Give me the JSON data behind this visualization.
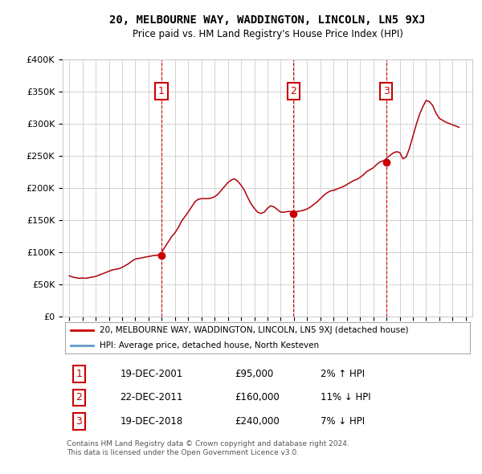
{
  "title": "20, MELBOURNE WAY, WADDINGTON, LINCOLN, LN5 9XJ",
  "subtitle": "Price paid vs. HM Land Registry's House Price Index (HPI)",
  "line1_label": "20, MELBOURNE WAY, WADDINGTON, LINCOLN, LN5 9XJ (detached house)",
  "line2_label": "HPI: Average price, detached house, North Kesteven",
  "sale_points": [
    {
      "num": 1,
      "year": 2001.97,
      "price": 95000,
      "label": "1",
      "date": "19-DEC-2001",
      "pct": "2%",
      "dir": "↑"
    },
    {
      "num": 2,
      "year": 2011.97,
      "price": 160000,
      "label": "2",
      "date": "22-DEC-2011",
      "pct": "11%",
      "dir": "↓"
    },
    {
      "num": 3,
      "year": 2018.97,
      "price": 240000,
      "label": "3",
      "date": "19-DEC-2018",
      "pct": "7%",
      "dir": "↓"
    }
  ],
  "vline_years": [
    2001.97,
    2011.97,
    2018.97
  ],
  "ylim": [
    0,
    400000
  ],
  "xlim": [
    1994.5,
    2025.5
  ],
  "yticks": [
    0,
    50000,
    100000,
    150000,
    200000,
    250000,
    300000,
    350000,
    400000
  ],
  "ytick_labels": [
    "£0",
    "£50K",
    "£100K",
    "£150K",
    "£200K",
    "£250K",
    "£300K",
    "£350K",
    "£400K"
  ],
  "xticks": [
    1995,
    1996,
    1997,
    1998,
    1999,
    2000,
    2001,
    2002,
    2003,
    2004,
    2005,
    2006,
    2007,
    2008,
    2009,
    2010,
    2011,
    2012,
    2013,
    2014,
    2015,
    2016,
    2017,
    2018,
    2019,
    2020,
    2021,
    2022,
    2023,
    2024,
    2025
  ],
  "red_color": "#cc0000",
  "blue_color": "#6699cc",
  "vline_color": "#cc0000",
  "grid_color": "#cccccc",
  "bg_color": "#ffffff",
  "footnote": "Contains HM Land Registry data © Crown copyright and database right 2024.\nThis data is licensed under the Open Government Licence v3.0.",
  "table_rows": [
    {
      "num": "1",
      "date": "19-DEC-2001",
      "price": "£95,000",
      "pct": "2%",
      "dir": "↑"
    },
    {
      "num": "2",
      "date": "22-DEC-2011",
      "price": "£160,000",
      "pct": "11%",
      "dir": "↓"
    },
    {
      "num": "3",
      "date": "19-DEC-2018",
      "price": "£240,000",
      "pct": "7%",
      "dir": "↓"
    }
  ],
  "hpi_years": [
    1995.0,
    1995.25,
    1995.5,
    1995.75,
    1996.0,
    1996.25,
    1996.5,
    1996.75,
    1997.0,
    1997.25,
    1997.5,
    1997.75,
    1998.0,
    1998.25,
    1998.5,
    1998.75,
    1999.0,
    1999.25,
    1999.5,
    1999.75,
    2000.0,
    2000.25,
    2000.5,
    2000.75,
    2001.0,
    2001.25,
    2001.5,
    2001.75,
    2002.0,
    2002.25,
    2002.5,
    2002.75,
    2003.0,
    2003.25,
    2003.5,
    2003.75,
    2004.0,
    2004.25,
    2004.5,
    2004.75,
    2005.0,
    2005.25,
    2005.5,
    2005.75,
    2006.0,
    2006.25,
    2006.5,
    2006.75,
    2007.0,
    2007.25,
    2007.5,
    2007.75,
    2008.0,
    2008.25,
    2008.5,
    2008.75,
    2009.0,
    2009.25,
    2009.5,
    2009.75,
    2010.0,
    2010.25,
    2010.5,
    2010.75,
    2011.0,
    2011.25,
    2011.5,
    2011.75,
    2012.0,
    2012.25,
    2012.5,
    2012.75,
    2013.0,
    2013.25,
    2013.5,
    2013.75,
    2014.0,
    2014.25,
    2014.5,
    2014.75,
    2015.0,
    2015.25,
    2015.5,
    2015.75,
    2016.0,
    2016.25,
    2016.5,
    2016.75,
    2017.0,
    2017.25,
    2017.5,
    2017.75,
    2018.0,
    2018.25,
    2018.5,
    2018.75,
    2019.0,
    2019.25,
    2019.5,
    2019.75,
    2020.0,
    2020.25,
    2020.5,
    2020.75,
    2021.0,
    2021.25,
    2021.5,
    2021.75,
    2022.0,
    2022.25,
    2022.5,
    2022.75,
    2023.0,
    2023.25,
    2023.5,
    2023.75,
    2024.0,
    2024.25,
    2024.5
  ],
  "hpi_values": [
    63000,
    61000,
    60000,
    59000,
    59500,
    59000,
    60000,
    61000,
    62000,
    64000,
    66000,
    68000,
    70000,
    72000,
    73000,
    74000,
    76000,
    79000,
    82000,
    86000,
    89000,
    90000,
    91000,
    92000,
    93000,
    94000,
    95000,
    96000,
    100000,
    108000,
    116000,
    124000,
    130000,
    138000,
    148000,
    155000,
    162000,
    170000,
    178000,
    182000,
    183000,
    183000,
    183000,
    184000,
    186000,
    190000,
    196000,
    202000,
    208000,
    212000,
    214000,
    210000,
    204000,
    196000,
    185000,
    175000,
    168000,
    162000,
    160000,
    162000,
    168000,
    172000,
    170000,
    166000,
    162000,
    162000,
    163000,
    163000,
    162000,
    163000,
    164000,
    165000,
    167000,
    170000,
    174000,
    178000,
    183000,
    188000,
    192000,
    195000,
    196000,
    198000,
    200000,
    202000,
    205000,
    208000,
    211000,
    213000,
    216000,
    220000,
    225000,
    228000,
    231000,
    236000,
    240000,
    242000,
    246000,
    250000,
    254000,
    256000,
    255000,
    245000,
    248000,
    262000,
    280000,
    298000,
    314000,
    326000,
    336000,
    334000,
    328000,
    316000,
    308000,
    305000,
    302000,
    300000,
    298000,
    296000,
    294000
  ],
  "price_years": [
    1995.0,
    1995.25,
    1995.5,
    1995.75,
    1996.0,
    1996.25,
    1996.5,
    1996.75,
    1997.0,
    1997.25,
    1997.5,
    1997.75,
    1998.0,
    1998.25,
    1998.5,
    1998.75,
    1999.0,
    1999.25,
    1999.5,
    1999.75,
    2000.0,
    2000.25,
    2000.5,
    2000.75,
    2001.0,
    2001.25,
    2001.5,
    2001.75,
    2001.97,
    2002.0,
    2002.25,
    2002.5,
    2002.75,
    2003.0,
    2003.25,
    2003.5,
    2003.75,
    2004.0,
    2004.25,
    2004.5,
    2004.75,
    2005.0,
    2005.25,
    2005.5,
    2005.75,
    2006.0,
    2006.25,
    2006.5,
    2006.75,
    2007.0,
    2007.25,
    2007.5,
    2007.75,
    2008.0,
    2008.25,
    2008.5,
    2008.75,
    2009.0,
    2009.25,
    2009.5,
    2009.75,
    2010.0,
    2010.25,
    2010.5,
    2010.75,
    2011.0,
    2011.25,
    2011.5,
    2011.75,
    2011.97,
    2012.0,
    2012.25,
    2012.5,
    2012.75,
    2013.0,
    2013.25,
    2013.5,
    2013.75,
    2014.0,
    2014.25,
    2014.5,
    2014.75,
    2015.0,
    2015.25,
    2015.5,
    2015.75,
    2016.0,
    2016.25,
    2016.5,
    2016.75,
    2017.0,
    2017.25,
    2017.5,
    2017.75,
    2018.0,
    2018.25,
    2018.5,
    2018.75,
    2018.97,
    2019.0,
    2019.25,
    2019.5,
    2019.75,
    2020.0,
    2020.25,
    2020.5,
    2020.75,
    2021.0,
    2021.25,
    2021.5,
    2021.75,
    2022.0,
    2022.25,
    2022.5,
    2022.75,
    2023.0,
    2023.25,
    2023.5,
    2023.75,
    2024.0,
    2024.25,
    2024.5
  ],
  "price_values": [
    63000,
    61000,
    60000,
    59000,
    59500,
    59000,
    60000,
    61000,
    62000,
    64000,
    66000,
    68000,
    70000,
    72000,
    73000,
    74000,
    76000,
    79000,
    82000,
    86000,
    89000,
    90000,
    91000,
    92000,
    93000,
    94000,
    94500,
    95000,
    95000,
    100000,
    108000,
    116000,
    124000,
    130000,
    138000,
    148000,
    155000,
    162000,
    170000,
    178000,
    182000,
    183000,
    183000,
    183000,
    184000,
    186000,
    190000,
    196000,
    202000,
    208000,
    212000,
    214000,
    210000,
    204000,
    196000,
    185000,
    175000,
    168000,
    162000,
    160000,
    162000,
    168000,
    172000,
    170000,
    166000,
    162000,
    162000,
    163000,
    163000,
    160000,
    160000,
    163000,
    164000,
    165000,
    167000,
    170000,
    174000,
    178000,
    183000,
    188000,
    192000,
    195000,
    196000,
    198000,
    200000,
    202000,
    205000,
    208000,
    211000,
    213000,
    216000,
    220000,
    225000,
    228000,
    231000,
    236000,
    240000,
    242000,
    240000,
    246000,
    250000,
    254000,
    256000,
    255000,
    245000,
    248000,
    262000,
    280000,
    298000,
    314000,
    326000,
    336000,
    334000,
    328000,
    316000,
    308000,
    305000,
    302000,
    300000,
    298000,
    296000,
    294000
  ]
}
